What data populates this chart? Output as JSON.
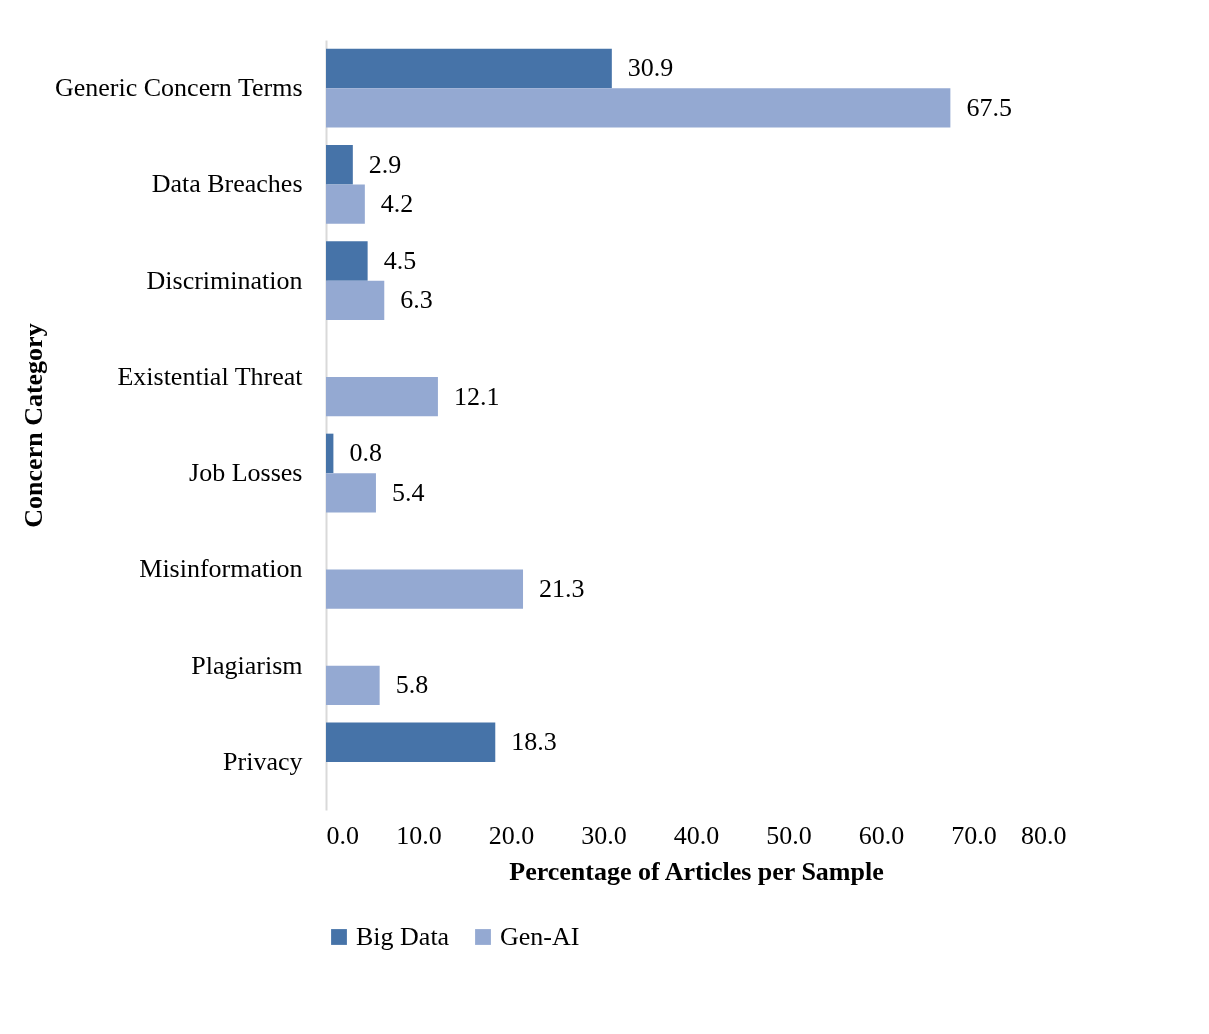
{
  "chart_data": {
    "type": "bar",
    "orientation": "horizontal",
    "ylabel": "Concern Category",
    "xlabel": "Percentage of Articles per Sample",
    "categories": [
      "Generic Concern Terms",
      "Data Breaches",
      "Discrimination",
      "Existential Threat",
      "Job Losses",
      "Misinformation",
      "Plagiarism",
      "Privacy"
    ],
    "series": [
      {
        "name": "Big Data",
        "color": "#4673a8",
        "values": [
          30.9,
          2.9,
          4.5,
          null,
          0.8,
          null,
          null,
          18.3
        ]
      },
      {
        "name": "Gen-AI",
        "color": "#94a9d2",
        "values": [
          67.5,
          4.2,
          6.3,
          12.1,
          5.4,
          21.3,
          5.8,
          null
        ]
      }
    ],
    "xlim": [
      0,
      80
    ],
    "xticks": [
      {
        "value": 0,
        "label": "0.0"
      },
      {
        "value": 10,
        "label": "10.0"
      },
      {
        "value": 20,
        "label": "20.0"
      },
      {
        "value": 30,
        "label": "30.0"
      },
      {
        "value": 40,
        "label": "40.0"
      },
      {
        "value": 50,
        "label": "50.0"
      },
      {
        "value": 60,
        "label": "60.0"
      },
      {
        "value": 70,
        "label": "70.0"
      },
      {
        "value": 80,
        "label": "80.0"
      }
    ],
    "data_labels": true,
    "grid": false,
    "legend": "bottom"
  }
}
